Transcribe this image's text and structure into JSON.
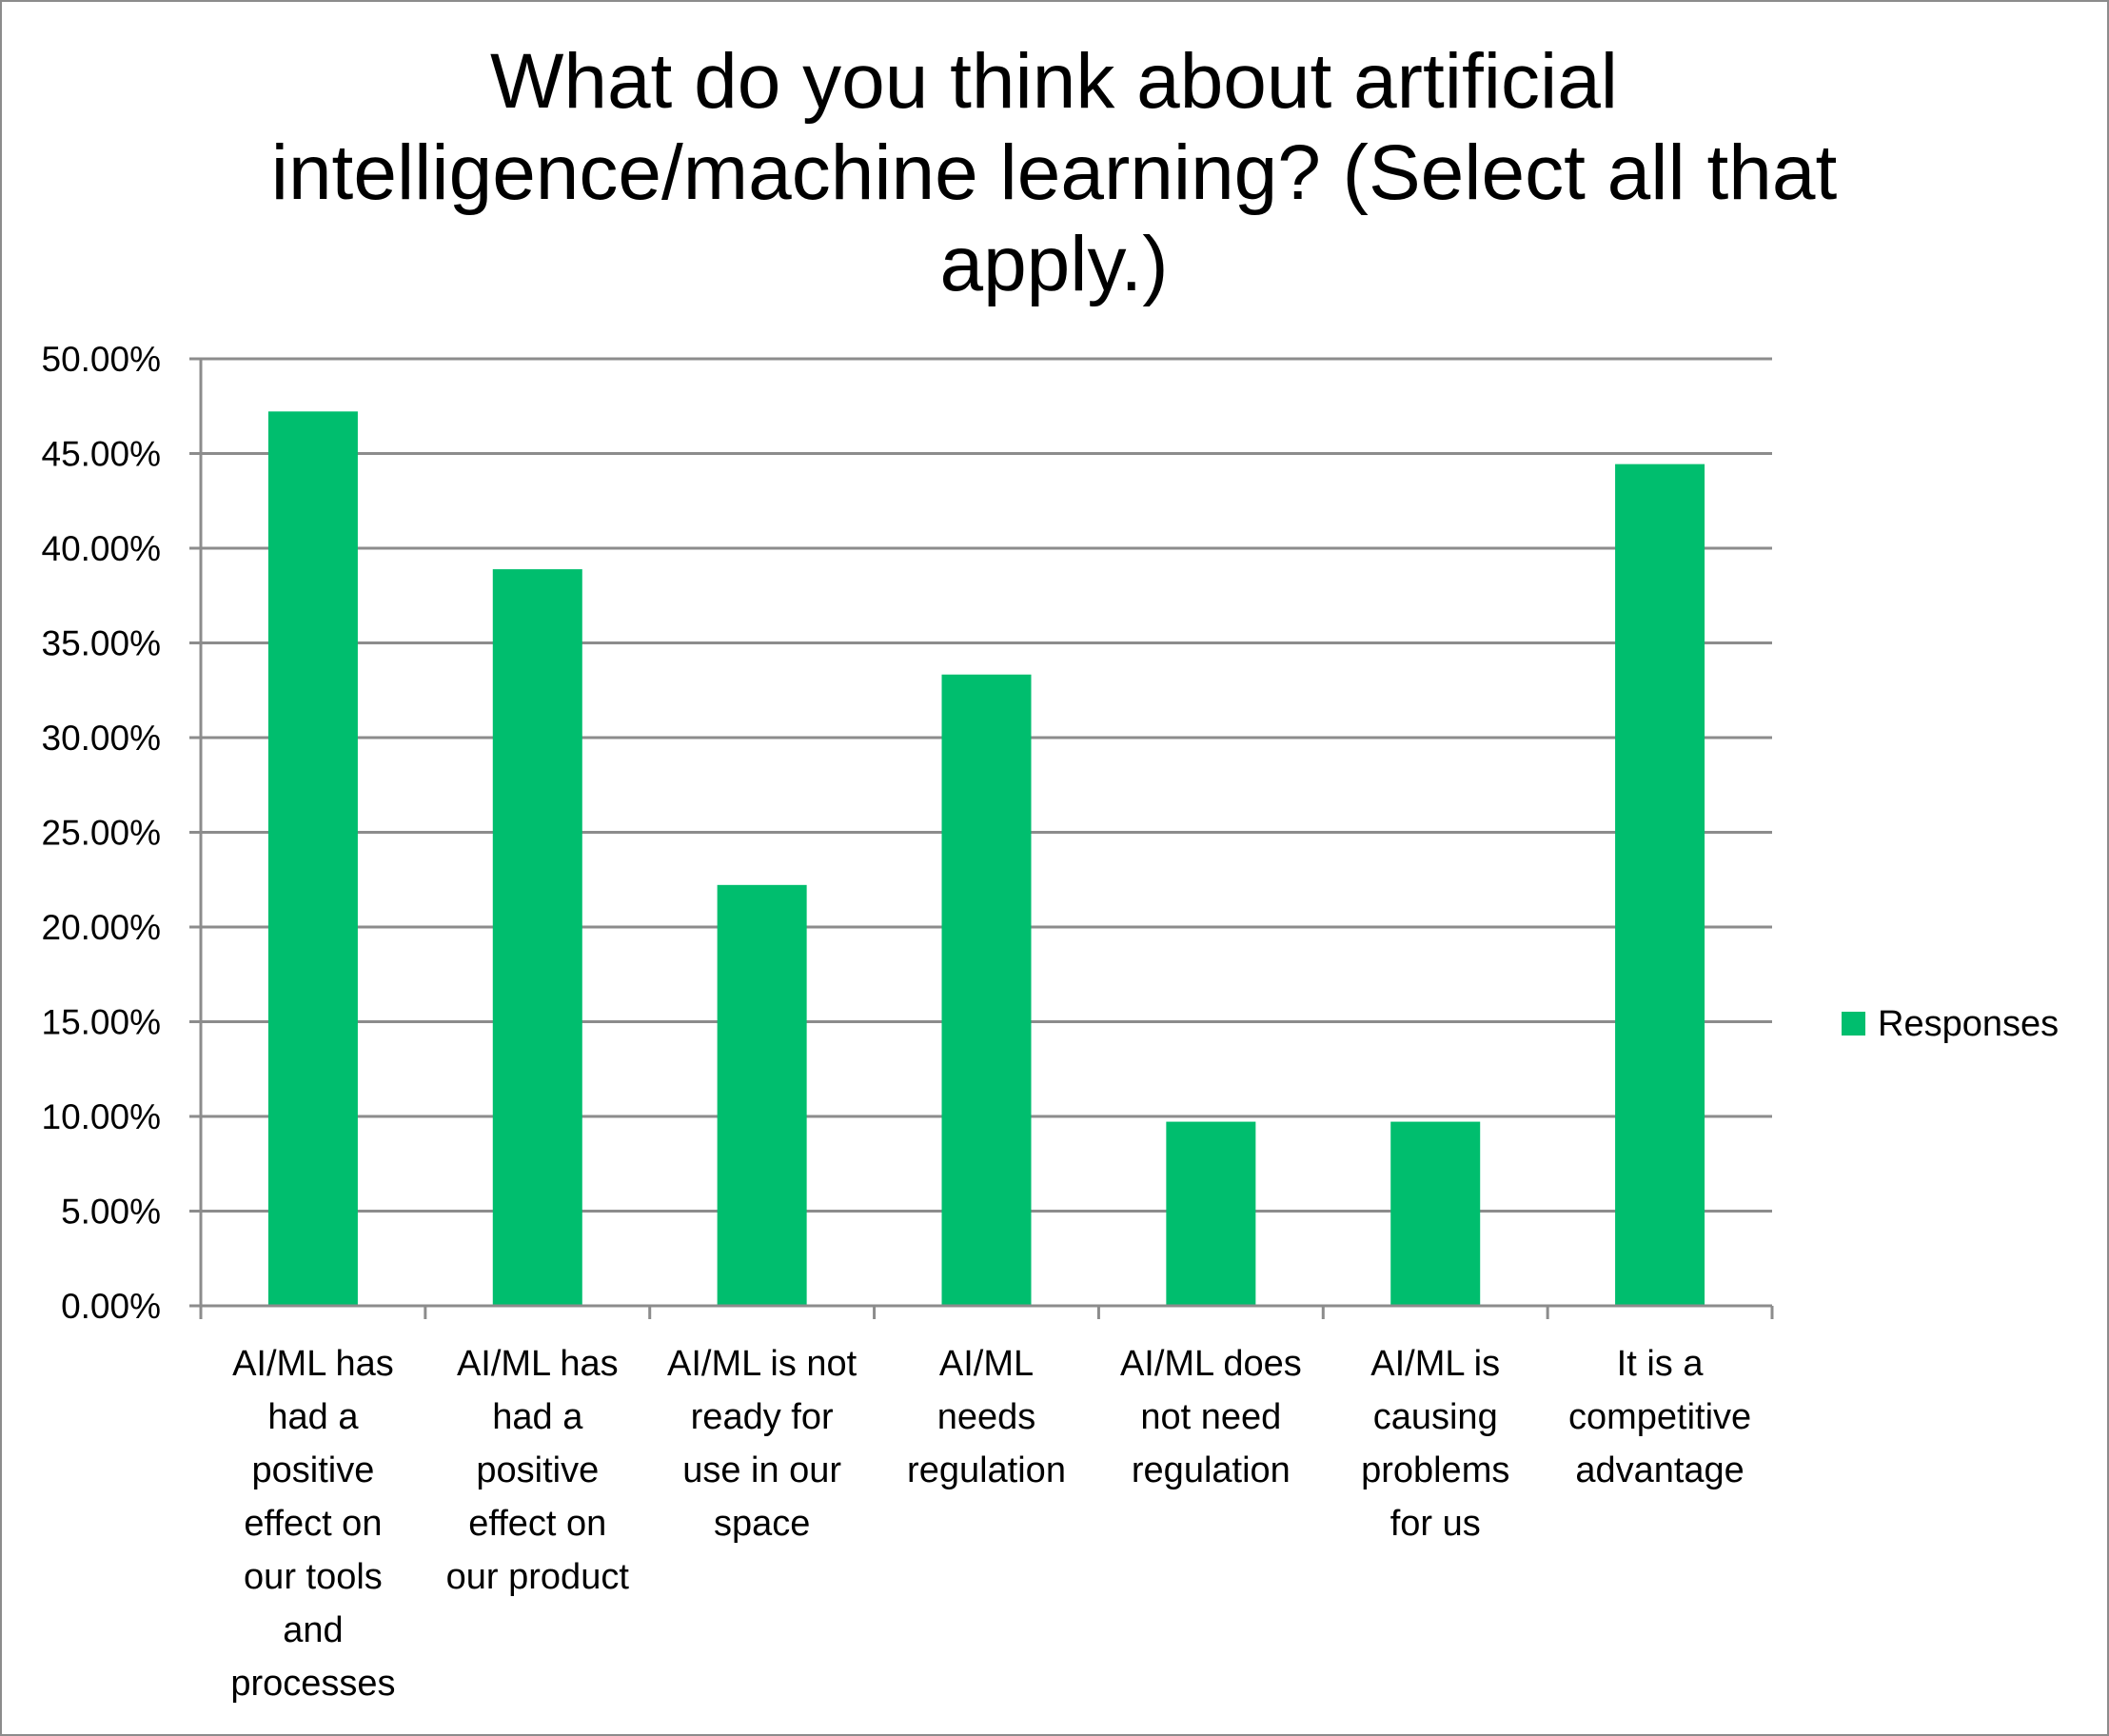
{
  "chart_data": {
    "type": "bar",
    "title": "What do you think about artificial intelligence/machine learning? (Select all that apply.)",
    "xlabel": "",
    "ylabel": "",
    "categories": [
      "AI/ML has had a positive effect on our tools and processes",
      "AI/ML has had a positive effect on our product",
      "AI/ML is not ready for use in our space",
      "AI/ML needs regulation",
      "AI/ML does not need regulation",
      "AI/ML is causing problems for us",
      "It is a competitive advantage"
    ],
    "category_lines": [
      [
        "AI/ML has",
        "had a",
        "positive",
        "effect on",
        "our tools",
        "and",
        "processes"
      ],
      [
        "AI/ML has",
        "had a",
        "positive",
        "effect on",
        "our product"
      ],
      [
        "AI/ML is not",
        "ready for",
        "use in our",
        "space"
      ],
      [
        "AI/ML",
        "needs",
        "regulation"
      ],
      [
        "AI/ML does",
        "not need",
        "regulation"
      ],
      [
        "AI/ML is",
        "causing",
        "problems",
        "for us"
      ],
      [
        "It is a",
        "competitive",
        "advantage"
      ]
    ],
    "series": [
      {
        "name": "Responses",
        "values": [
          47.22,
          38.89,
          22.22,
          33.33,
          9.72,
          9.72,
          44.44
        ],
        "color": "#00BE6E"
      }
    ],
    "ylim": [
      0,
      50
    ],
    "yticks": [
      0,
      5,
      10,
      15,
      20,
      25,
      30,
      35,
      40,
      45,
      50
    ],
    "ytick_labels": [
      "0.00%",
      "5.00%",
      "10.00%",
      "15.00%",
      "20.00%",
      "25.00%",
      "30.00%",
      "35.00%",
      "40.00%",
      "45.00%",
      "50.00%"
    ],
    "grid": true,
    "gridline_color": "#8c8c8c",
    "legend_position": "right"
  }
}
